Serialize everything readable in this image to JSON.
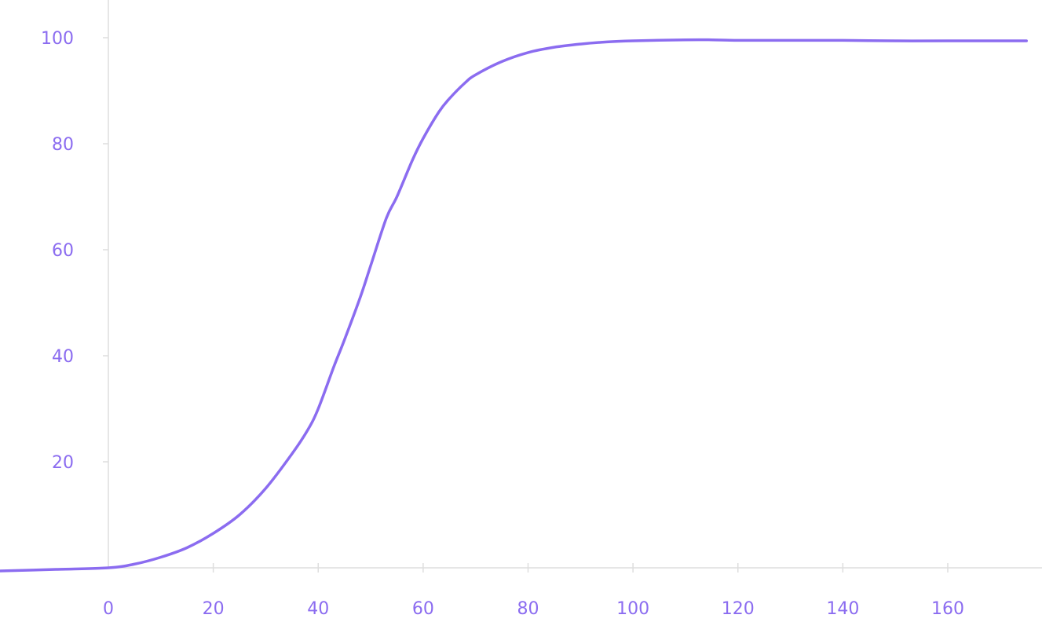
{
  "colors": {
    "series": "#8B6CF0",
    "tick_text": "#8B6CF0",
    "axis": "#dedede",
    "background": "#ffffff"
  },
  "chart_data": {
    "type": "line",
    "title": "",
    "xlabel": "",
    "ylabel": "",
    "grid": false,
    "legend": "none",
    "xlim": [
      -21,
      175
    ],
    "ylim": [
      -1,
      103
    ],
    "x_ticks": [
      0,
      20,
      40,
      60,
      80,
      100,
      120,
      140,
      160
    ],
    "x_tick_labels": [
      "0",
      "20",
      "40",
      "60",
      "80",
      "100",
      "120",
      "140",
      "160"
    ],
    "y_ticks": [
      20,
      40,
      60,
      80,
      100
    ],
    "y_tick_labels": [
      "20",
      "40",
      "60",
      "80",
      "100"
    ],
    "series": [
      {
        "x": [
          -21,
          -10,
          0,
          5,
          10,
          15,
          20,
          25,
          30,
          35,
          38,
          40,
          43,
          45,
          48,
          50,
          53,
          55,
          58,
          60,
          63,
          65,
          68,
          70,
          75,
          80,
          85,
          90,
          95,
          100,
          110,
          115,
          120,
          130,
          140,
          150,
          160,
          175
        ],
        "y": [
          -0.6,
          -0.3,
          0,
          0.7,
          2,
          3.8,
          6.5,
          10,
          15,
          21.5,
          26,
          30,
          38,
          43,
          51,
          57,
          66,
          70,
          77,
          81,
          86,
          88.5,
          91.5,
          93,
          95.5,
          97.2,
          98.2,
          98.8,
          99.2,
          99.4,
          99.6,
          99.6,
          99.5,
          99.5,
          99.5,
          99.4,
          99.4,
          99.4
        ]
      }
    ]
  }
}
